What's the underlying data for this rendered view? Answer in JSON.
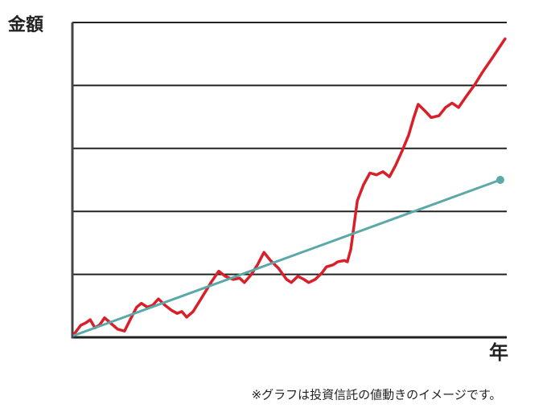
{
  "chart_data": {
    "type": "line",
    "ylabel": "金額",
    "xlabel": "年",
    "note": "※グラフは投資信託の値動きのイメージです。",
    "xlim": [
      0,
      100
    ],
    "ylim": [
      0,
      5
    ],
    "yticks": [
      0,
      1,
      2,
      3,
      4,
      5
    ],
    "grid": true,
    "series": [
      {
        "color": "#d9202a",
        "x": [
          0.4,
          1.9,
          3.1,
          4.1,
          5.2,
          6.3,
          7.4,
          8.9,
          10.4,
          12.0,
          13.3,
          14.8,
          15.9,
          17.2,
          18.5,
          19.8,
          21.3,
          22.8,
          24.1,
          25.2,
          26.3,
          27.8,
          29.6,
          31.9,
          33.7,
          35.2,
          37.0,
          38.5,
          39.6,
          41.1,
          42.6,
          44.1,
          45.6,
          47.4,
          49.3,
          50.4,
          51.9,
          53.3,
          54.4,
          55.9,
          57.4,
          58.5,
          60.0,
          61.1,
          62.6,
          63.3,
          64.1,
          65.6,
          67.0,
          68.5,
          70.0,
          71.5,
          73.0,
          74.4,
          75.9,
          77.4,
          78.5,
          79.6,
          81.1,
          82.6,
          84.4,
          85.9,
          87.4,
          88.9,
          90.7,
          92.6,
          94.4,
          96.7,
          99.6
        ],
        "values": [
          0.05,
          0.19,
          0.23,
          0.28,
          0.15,
          0.2,
          0.31,
          0.22,
          0.13,
          0.1,
          0.28,
          0.48,
          0.54,
          0.48,
          0.51,
          0.61,
          0.51,
          0.43,
          0.38,
          0.41,
          0.32,
          0.41,
          0.61,
          0.87,
          1.05,
          0.97,
          0.92,
          0.94,
          0.87,
          0.99,
          1.15,
          1.35,
          1.22,
          1.1,
          0.92,
          0.87,
          0.97,
          0.92,
          0.87,
          0.92,
          1.02,
          1.12,
          1.15,
          1.2,
          1.22,
          1.2,
          1.4,
          2.17,
          2.42,
          2.61,
          2.58,
          2.63,
          2.55,
          2.73,
          2.96,
          3.21,
          3.47,
          3.7,
          3.6,
          3.49,
          3.52,
          3.65,
          3.72,
          3.65,
          3.83,
          4.01,
          4.21,
          4.44,
          4.74
        ]
      },
      {
        "color": "#5aa9a8",
        "x": [
          0.4,
          98.5
        ],
        "values": [
          0.03,
          2.5
        ],
        "end_marker": true
      }
    ]
  }
}
